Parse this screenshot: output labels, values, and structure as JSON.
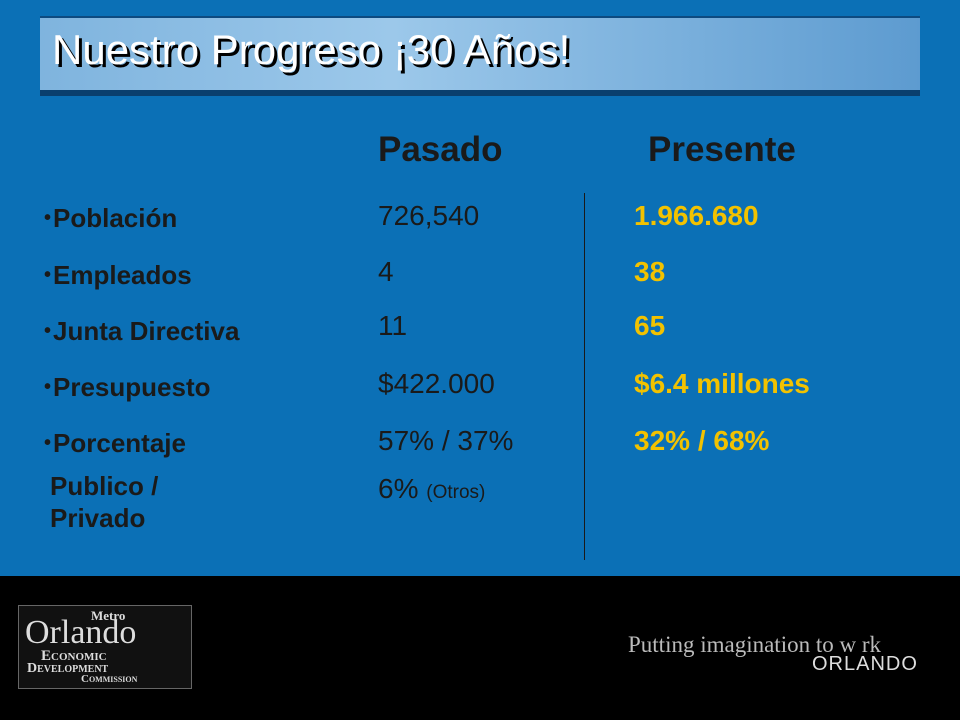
{
  "header": {
    "title": "Nuestro Progreso ¡30 Años!"
  },
  "table": {
    "columns": [
      "Pasado",
      "Presente"
    ],
    "rows": [
      {
        "label": "Población",
        "past": "726,540",
        "present": "1.966.680"
      },
      {
        "label": "Empleados",
        "past": "4",
        "present": "38"
      },
      {
        "label": "Junta Directiva",
        "past": "11",
        "present": "65"
      },
      {
        "label": "Presupuesto",
        "past": "$422.000",
        "present": "$6.4 millones"
      },
      {
        "label": "Porcentaje",
        "sublabel": "Publico / Privado",
        "past": "57% / 37%",
        "past_extra": "6%",
        "past_extra_note": "(Otros)",
        "present": "32% / 68%"
      }
    ]
  },
  "footer": {
    "logo": [
      "Metro",
      "Orlando",
      "Economic",
      "Development",
      "Commission"
    ],
    "tagline": "Putting imagination to w rk",
    "city": "ORLANDO"
  }
}
